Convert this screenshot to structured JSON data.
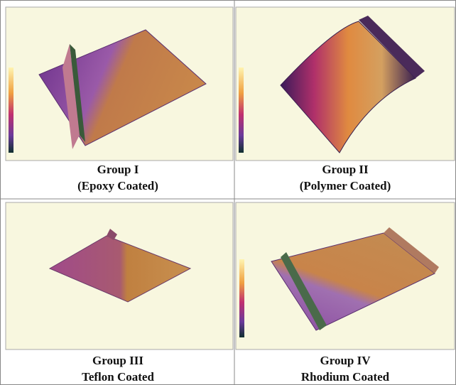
{
  "panels": [
    {
      "title": "Group I",
      "subtitle": "(Epoxy Coated)"
    },
    {
      "title": "Group II",
      "subtitle": "(Polymer Coated)"
    },
    {
      "title": "Group III",
      "subtitle": "Teflon Coated"
    },
    {
      "title": "Group IV",
      "subtitle": "Rhodium Coated"
    }
  ]
}
